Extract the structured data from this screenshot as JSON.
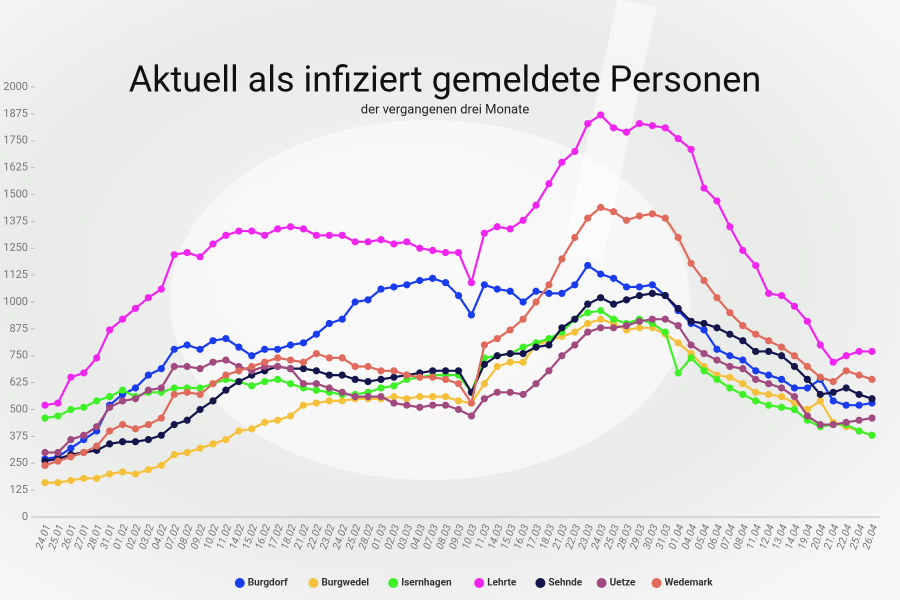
{
  "chart_data": {
    "type": "line",
    "title": "Aktuell als infiziert gemeldete Personen",
    "subtitle": "der vergangenen drei Monate",
    "categories": [
      "24.01",
      "25.01",
      "26.01",
      "27.01",
      "28.01",
      "31.01",
      "01.02",
      "02.02",
      "03.02",
      "04.02",
      "07.02",
      "08.02",
      "09.02",
      "10.02",
      "11.02",
      "14.02",
      "15.02",
      "16.02",
      "17.02",
      "18.02",
      "21.02",
      "22.02",
      "23.02",
      "24.02",
      "25.02",
      "28.02",
      "01.03",
      "02.03",
      "03.03",
      "04.03",
      "07.03",
      "08.03",
      "09.03",
      "10.03",
      "11.03",
      "14.03",
      "15.03",
      "16.03",
      "17.03",
      "18.03",
      "21.03",
      "22.03",
      "23.03",
      "24.03",
      "25.03",
      "28.03",
      "29.03",
      "30.03",
      "31.03",
      "01.04",
      "04.04",
      "05.04",
      "06.04",
      "07.04",
      "08.04",
      "11.04",
      "12.04",
      "13.04",
      "14.04",
      "19.04",
      "20.04",
      "21.04",
      "22.04",
      "25.04",
      "26.04"
    ],
    "series": [
      {
        "name": "Burgdorf",
        "color": "#1a3cf0",
        "values": [
          270,
          280,
          320,
          360,
          400,
          520,
          570,
          600,
          660,
          690,
          780,
          800,
          780,
          820,
          830,
          790,
          750,
          780,
          780,
          800,
          810,
          850,
          900,
          920,
          1000,
          1010,
          1060,
          1070,
          1080,
          1100,
          1110,
          1090,
          1030,
          940,
          1080,
          1060,
          1050,
          1000,
          1050,
          1040,
          1040,
          1080,
          1170,
          1130,
          1110,
          1070,
          1070,
          1080,
          1030,
          960,
          900,
          870,
          780,
          750,
          730,
          680,
          660,
          640,
          600,
          600,
          640,
          540,
          520,
          520,
          530
        ]
      },
      {
        "name": "Burgwedel",
        "color": "#f5c03a",
        "values": [
          160,
          160,
          170,
          180,
          180,
          200,
          210,
          200,
          220,
          240,
          290,
          300,
          320,
          340,
          360,
          400,
          410,
          440,
          450,
          470,
          520,
          530,
          540,
          540,
          550,
          550,
          550,
          560,
          550,
          560,
          560,
          560,
          540,
          530,
          620,
          700,
          720,
          720,
          800,
          820,
          840,
          860,
          900,
          920,
          900,
          870,
          880,
          880,
          850,
          810,
          760,
          700,
          660,
          650,
          620,
          580,
          570,
          560,
          530,
          500,
          540,
          440,
          420,
          400,
          380
        ]
      },
      {
        "name": "Isernhagen",
        "color": "#3ef026",
        "values": [
          460,
          470,
          500,
          510,
          540,
          560,
          590,
          560,
          580,
          580,
          600,
          600,
          600,
          620,
          640,
          630,
          610,
          630,
          640,
          620,
          600,
          590,
          580,
          570,
          570,
          580,
          600,
          610,
          640,
          650,
          660,
          660,
          660,
          580,
          740,
          750,
          760,
          790,
          810,
          830,
          860,
          920,
          950,
          960,
          920,
          900,
          920,
          900,
          860,
          670,
          740,
          680,
          640,
          600,
          570,
          540,
          520,
          510,
          500,
          450,
          420,
          430,
          430,
          400,
          380
        ]
      },
      {
        "name": "Lehrte",
        "color": "#f025f0",
        "values": [
          520,
          530,
          650,
          670,
          740,
          870,
          920,
          970,
          1020,
          1060,
          1220,
          1230,
          1210,
          1270,
          1310,
          1330,
          1330,
          1310,
          1340,
          1350,
          1340,
          1310,
          1310,
          1310,
          1280,
          1280,
          1290,
          1270,
          1280,
          1250,
          1240,
          1230,
          1230,
          1090,
          1320,
          1350,
          1340,
          1380,
          1450,
          1550,
          1650,
          1700,
          1830,
          1870,
          1810,
          1790,
          1830,
          1820,
          1810,
          1760,
          1710,
          1530,
          1470,
          1350,
          1240,
          1170,
          1040,
          1030,
          980,
          910,
          800,
          720,
          750,
          770,
          770
        ]
      },
      {
        "name": "Sehnde",
        "color": "#14154a",
        "values": [
          260,
          270,
          290,
          300,
          310,
          340,
          350,
          350,
          360,
          380,
          430,
          450,
          500,
          540,
          590,
          630,
          660,
          680,
          700,
          690,
          690,
          680,
          660,
          660,
          640,
          630,
          640,
          650,
          660,
          670,
          680,
          680,
          680,
          580,
          710,
          750,
          760,
          760,
          790,
          800,
          880,
          920,
          990,
          1020,
          990,
          1010,
          1030,
          1040,
          1030,
          970,
          910,
          900,
          880,
          850,
          820,
          770,
          770,
          750,
          700,
          640,
          570,
          580,
          600,
          570,
          550
        ]
      },
      {
        "name": "Uetze",
        "color": "#a04a80",
        "values": [
          300,
          300,
          360,
          380,
          420,
          510,
          540,
          550,
          590,
          600,
          700,
          700,
          690,
          720,
          730,
          700,
          680,
          700,
          700,
          690,
          620,
          620,
          600,
          580,
          560,
          560,
          560,
          530,
          520,
          510,
          520,
          520,
          500,
          470,
          550,
          580,
          580,
          570,
          620,
          680,
          750,
          800,
          860,
          880,
          880,
          890,
          910,
          920,
          920,
          890,
          800,
          760,
          730,
          700,
          690,
          640,
          620,
          600,
          560,
          470,
          430,
          430,
          440,
          450,
          460
        ]
      },
      {
        "name": "Wedemark",
        "color": "#e06a5c",
        "values": [
          240,
          260,
          280,
          300,
          330,
          400,
          430,
          410,
          430,
          460,
          570,
          580,
          570,
          620,
          660,
          680,
          700,
          720,
          740,
          730,
          720,
          760,
          740,
          740,
          700,
          700,
          680,
          680,
          660,
          650,
          650,
          640,
          620,
          530,
          800,
          830,
          870,
          920,
          1000,
          1080,
          1200,
          1300,
          1390,
          1440,
          1420,
          1380,
          1400,
          1410,
          1390,
          1300,
          1180,
          1100,
          1020,
          950,
          890,
          850,
          820,
          790,
          750,
          700,
          650,
          630,
          680,
          660,
          640
        ]
      }
    ],
    "ylim": [
      0,
      2000
    ],
    "yticks": [
      0,
      125,
      250,
      375,
      500,
      625,
      750,
      875,
      1000,
      1125,
      1250,
      1375,
      1500,
      1625,
      1750,
      1875,
      2000
    ],
    "grid": false,
    "legend": "bottom"
  }
}
